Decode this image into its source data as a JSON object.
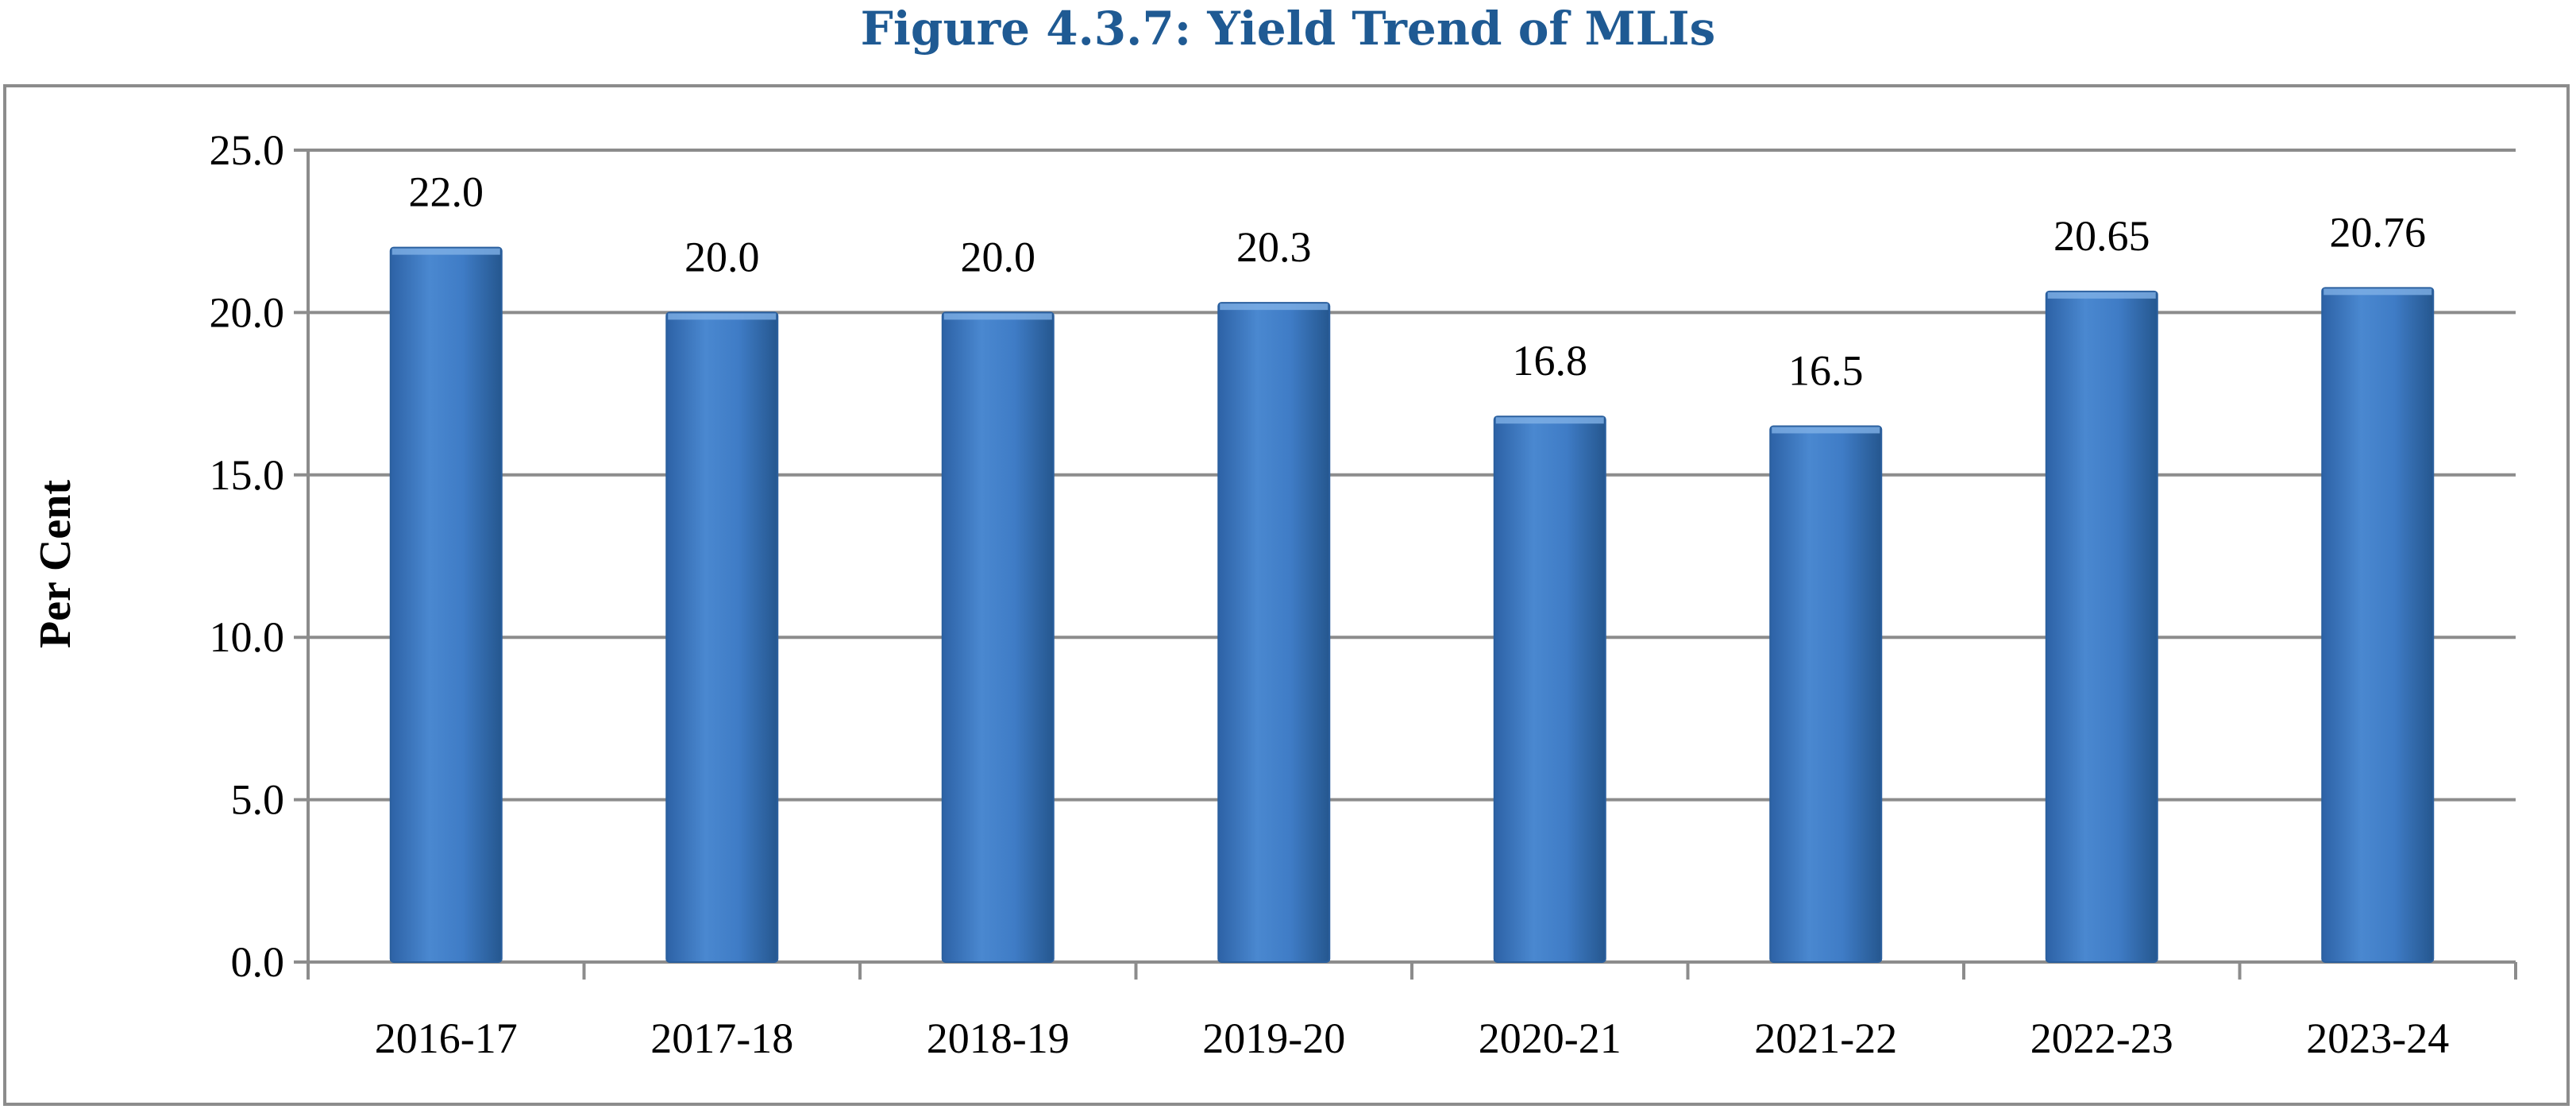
{
  "chart_data": {
    "type": "bar",
    "title": "Figure 4.3.7: Yield Trend of MLIs",
    "xlabel": "",
    "ylabel": "Per Cent",
    "categories": [
      "2016-17",
      "2017-18",
      "2018-19",
      "2019-20",
      "2020-21",
      "2021-22",
      "2022-23",
      "2023-24"
    ],
    "values": [
      22.0,
      20.0,
      20.0,
      20.3,
      16.8,
      16.5,
      20.65,
      20.76
    ],
    "data_labels": [
      "22.0",
      "20.0",
      "20.0",
      "20.3",
      "16.8",
      "16.5",
      "20.65",
      "20.76"
    ],
    "ylim": [
      0,
      25
    ],
    "yticks": [
      "0.0",
      "5.0",
      "10.0",
      "15.0",
      "20.0",
      "25.0"
    ],
    "grid": true,
    "legend": "none",
    "colors": {
      "bar": "#3a78c2",
      "bar_edge": "#2a5f9e",
      "grid": "#8c8c8c",
      "title": "#1f5a93"
    }
  }
}
